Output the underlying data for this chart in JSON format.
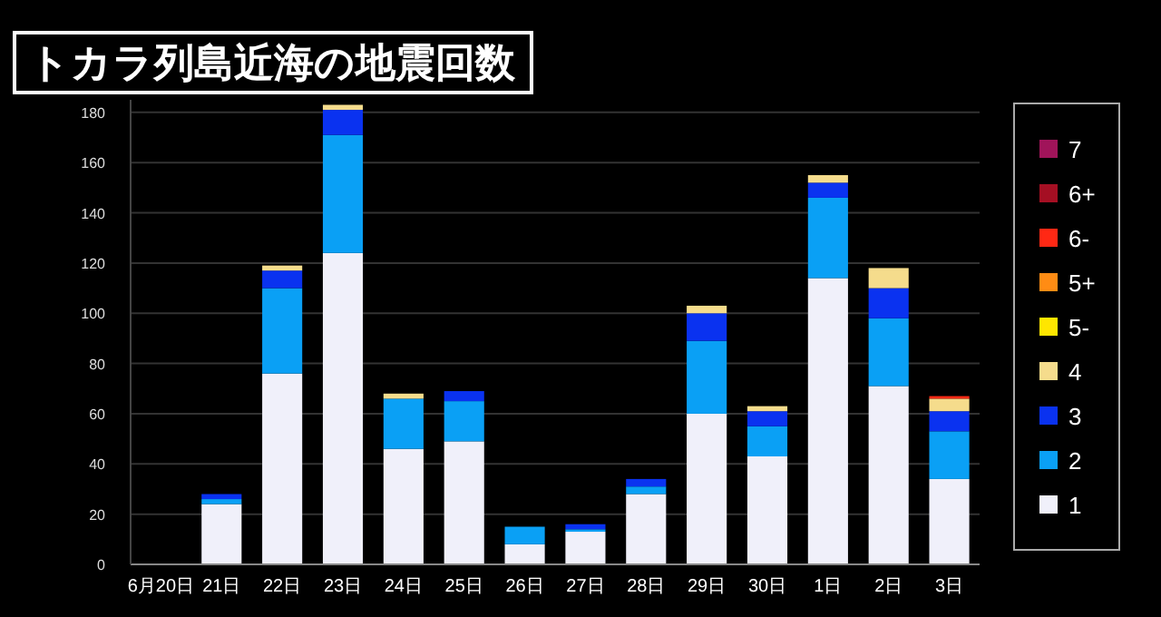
{
  "chart_data": {
    "type": "bar",
    "title": "トカラ列島近海の地震回数",
    "stacked": true,
    "grid": "y",
    "legend": "right",
    "categories": [
      "6月20日",
      "21日",
      "22日",
      "23日",
      "24日",
      "25日",
      "26日",
      "27日",
      "28日",
      "29日",
      "30日",
      "1日",
      "2日",
      "3日"
    ],
    "ylim": [
      0,
      185
    ],
    "yticks": [
      0,
      20,
      40,
      60,
      80,
      100,
      120,
      140,
      160,
      180
    ],
    "series": [
      {
        "name": "1",
        "color": "#f0f0fa",
        "values": [
          0,
          24,
          76,
          124,
          46,
          49,
          8,
          13,
          28,
          60,
          43,
          114,
          71,
          34
        ]
      },
      {
        "name": "2",
        "color": "#0aa0f5",
        "values": [
          0,
          2,
          34,
          47,
          20,
          16,
          7,
          1,
          3,
          29,
          12,
          32,
          27,
          19
        ]
      },
      {
        "name": "3",
        "color": "#0a32f0",
        "values": [
          0,
          2,
          7,
          10,
          0,
          4,
          0,
          2,
          3,
          11,
          6,
          6,
          12,
          8
        ]
      },
      {
        "name": "4",
        "color": "#f5dc8c",
        "values": [
          0,
          0,
          2,
          2,
          2,
          0,
          0,
          0,
          0,
          3,
          2,
          3,
          8,
          5
        ]
      },
      {
        "name": "5-",
        "color": "#ffe600",
        "values": [
          0,
          0,
          0,
          0,
          0,
          0,
          0,
          0,
          0,
          0,
          0,
          0,
          0,
          0
        ]
      },
      {
        "name": "5+",
        "color": "#ff8c14",
        "values": [
          0,
          0,
          0,
          0,
          0,
          0,
          0,
          0,
          0,
          0,
          0,
          0,
          0,
          0
        ]
      },
      {
        "name": "6-",
        "color": "#ff2814",
        "values": [
          0,
          0,
          0,
          0,
          0,
          0,
          0,
          0,
          0,
          0,
          0,
          0,
          0,
          1
        ]
      },
      {
        "name": "6+",
        "color": "#a50f23",
        "values": [
          0,
          0,
          0,
          0,
          0,
          0,
          0,
          0,
          0,
          0,
          0,
          0,
          0,
          0
        ]
      },
      {
        "name": "7",
        "color": "#a0145a",
        "values": [
          0,
          0,
          0,
          0,
          0,
          0,
          0,
          0,
          0,
          0,
          0,
          0,
          0,
          0
        ]
      }
    ]
  }
}
